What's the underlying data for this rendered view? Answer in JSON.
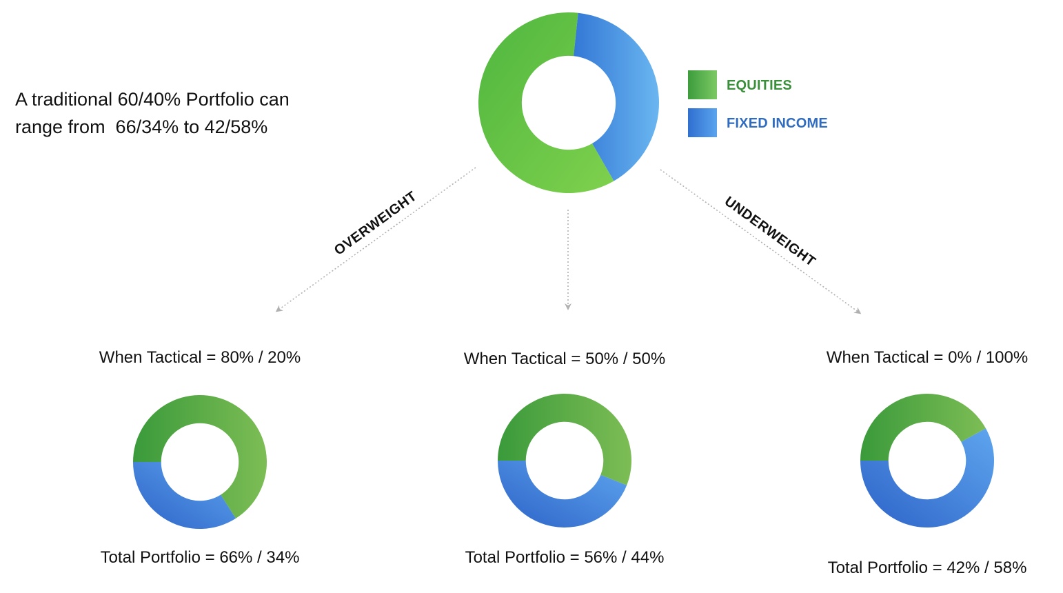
{
  "intro": {
    "line1": "A traditional 60/40% Portfolio can",
    "line2": "range from  66/34% to 42/58%"
  },
  "legend": [
    {
      "label": "EQUITIES",
      "color": "#3c9a3a",
      "text_color": "#3a8f3a"
    },
    {
      "label": "FIXED INCOME",
      "color": "#3a7ddb",
      "text_color": "#2f6cc0"
    }
  ],
  "branches": {
    "overweight": "OVERWEIGHT",
    "underweight": "UNDERWEIGHT"
  },
  "colors": {
    "equities_light": "#7fd14d",
    "equities_dark": "#3a9a3a",
    "fixed_light": "#6ab6f0",
    "fixed_dark": "#3378d6",
    "arrow": "#b0b0b0"
  },
  "chart_data": [
    {
      "type": "pie",
      "title": "",
      "categories": [
        "EQUITIES",
        "FIXED INCOME"
      ],
      "values": [
        60,
        40
      ]
    },
    {
      "type": "pie",
      "title": "When Tactical = 80% / 20%",
      "footer": "Total Portfolio = 66% / 34%",
      "categories": [
        "EQUITIES",
        "FIXED INCOME"
      ],
      "values": [
        66,
        34
      ]
    },
    {
      "type": "pie",
      "title": "When Tactical = 50% / 50%",
      "footer": "Total Portfolio = 56% / 44%",
      "categories": [
        "EQUITIES",
        "FIXED INCOME"
      ],
      "values": [
        56,
        44
      ]
    },
    {
      "type": "pie",
      "title": "When Tactical = 0% / 100%",
      "footer": "Total Portfolio = 42% / 58%",
      "categories": [
        "EQUITIES",
        "FIXED INCOME"
      ],
      "values": [
        42,
        58
      ]
    }
  ]
}
